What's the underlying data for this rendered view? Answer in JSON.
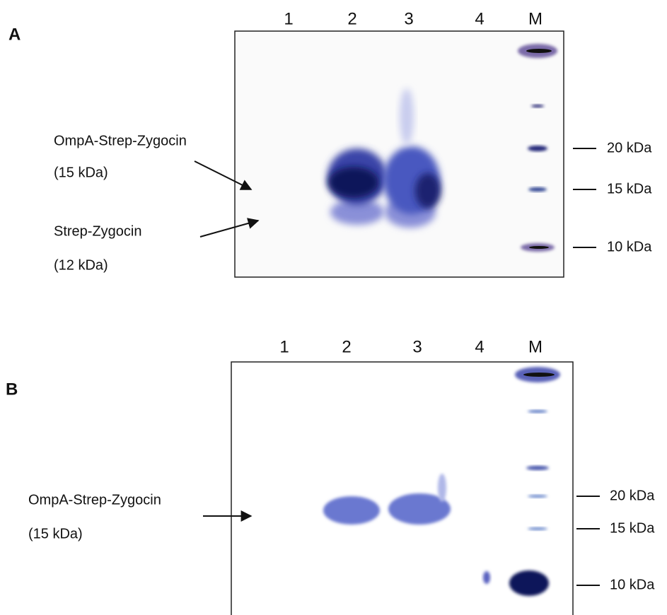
{
  "panels": [
    {
      "label": "A",
      "lanes": [
        "1",
        "2",
        "3",
        "4",
        "M"
      ],
      "markers": [
        "20 kDa",
        "15 kDa",
        "10 kDa"
      ],
      "annotations": [
        {
          "name": "OmpA-Strep-Zygocin",
          "size": "(15 kDa)"
        },
        {
          "name": "Strep-Zygocin",
          "size": "(12 kDa)"
        }
      ]
    },
    {
      "label": "B",
      "lanes": [
        "1",
        "2",
        "3",
        "4",
        "M"
      ],
      "markers": [
        "20 kDa",
        "15 kDa",
        "10 kDa"
      ],
      "annotations": [
        {
          "name": "OmpA-Strep-Zygocin",
          "size": "(15 kDa)"
        }
      ]
    }
  ]
}
